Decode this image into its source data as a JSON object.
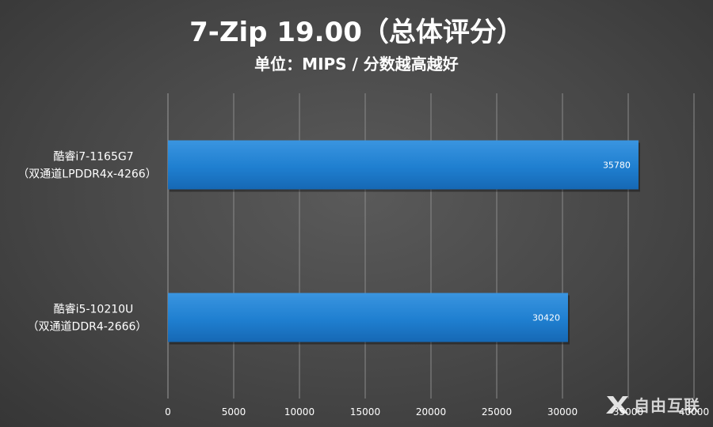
{
  "chart_data": {
    "type": "bar",
    "orientation": "horizontal",
    "title": "7-Zip 19.00（总体评分）",
    "subtitle": "单位：MIPS / 分数越高越好",
    "categories": [
      {
        "line1": "酷睿i7-1165G7",
        "line2": "（双通道LPDDR4x-4266）"
      },
      {
        "line1": "酷睿i5-10210U",
        "line2": "（双通道DDR4-2666）"
      }
    ],
    "values": [
      35780,
      30420
    ],
    "xlim": [
      0,
      40000
    ],
    "ticks": [
      "0",
      "5000",
      "10000",
      "15000",
      "20000",
      "25000",
      "30000",
      "35000",
      "40000"
    ],
    "grid": true,
    "bar_color": "#1f7fd0"
  },
  "watermark": {
    "text": "自由互联"
  }
}
